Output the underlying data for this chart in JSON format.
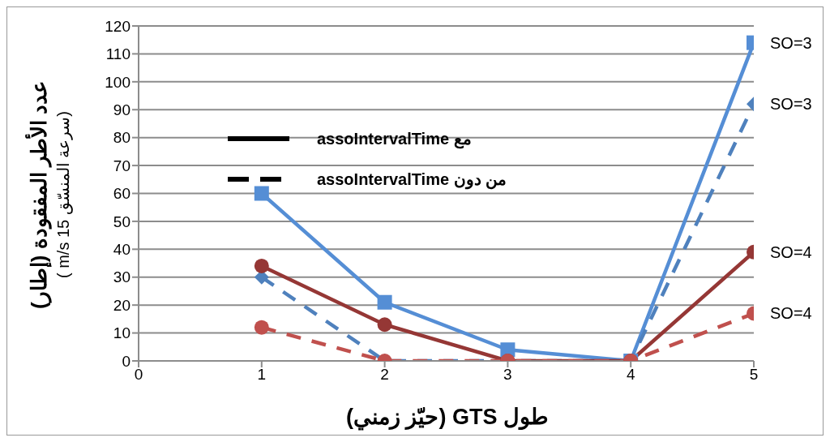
{
  "chart_data": {
    "type": "line",
    "xlabel": "طول GTS (حيّز زمني)",
    "ylabel": "عدد الأطر المفقودة (إطار)\n(سرعة المنسّق 15 m/s )",
    "x": [
      1,
      2,
      3,
      4,
      5
    ],
    "xlim": [
      0,
      5
    ],
    "xticks": [
      0,
      1,
      2,
      3,
      4,
      5
    ],
    "ylim": [
      0,
      120
    ],
    "yticks": [
      0,
      10,
      20,
      30,
      40,
      50,
      60,
      70,
      80,
      90,
      100,
      110,
      120
    ],
    "grid": "y",
    "series": [
      {
        "name": "SO=3",
        "color": "#558ed5",
        "values": [
          60,
          21,
          4,
          0,
          114
        ],
        "marker": "square",
        "line_style": "solid"
      },
      {
        "name": "SO=3",
        "color": "#4f81bd",
        "values": [
          30,
          0,
          0,
          0,
          92
        ],
        "marker": "diamond",
        "line_style": "dashed"
      },
      {
        "name": "SO=4",
        "color": "#953735",
        "values": [
          34,
          13,
          0,
          0,
          39
        ],
        "marker": "circle",
        "line_style": "solid"
      },
      {
        "name": "SO=4",
        "color": "#c0504d",
        "values": [
          12,
          0,
          0,
          0,
          17
        ],
        "marker": "circle",
        "line_style": "dashed"
      }
    ],
    "annotations": [
      "مع assoIntervalTime",
      "من دون assoIntervalTime"
    ]
  }
}
